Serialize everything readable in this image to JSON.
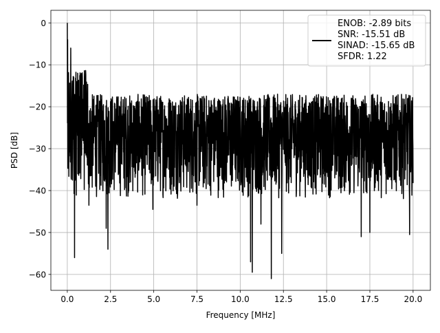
{
  "chart_data": {
    "type": "line",
    "title": "",
    "xlabel": "Frequency [MHz]",
    "ylabel": "PSD [dB]",
    "xlim": [
      -0.95,
      21.0
    ],
    "ylim": [
      -63.8,
      3.0
    ],
    "x_ticks": [
      0.0,
      2.5,
      5.0,
      7.5,
      10.0,
      12.5,
      15.0,
      17.5,
      20.0
    ],
    "x_tick_labels": [
      "0.0",
      "2.5",
      "5.0",
      "7.5",
      "10.0",
      "12.5",
      "15.0",
      "17.5",
      "20.0"
    ],
    "y_ticks": [
      0,
      -10,
      -20,
      -30,
      -40,
      -50,
      -60
    ],
    "y_tick_labels": [
      "0",
      "−10",
      "−20",
      "−30",
      "−40",
      "−50",
      "−60"
    ],
    "grid": true,
    "legend_placement": "top-right",
    "line_color": "#000000",
    "legend": {
      "lines": [
        "ENOB: -2.89 bits",
        "SNR: -15.51 dB",
        "SINAD: -15.65 dB",
        "SFDR: 1.22"
      ]
    },
    "series": [
      {
        "x_range": [
          0.0,
          20.0
        ],
        "noise_floor_db": [
          -42,
          -17
        ],
        "peaks": [
          [
            0.0,
            0.0
          ],
          [
            0.02,
            -4.0
          ],
          [
            0.2,
            -6.0
          ],
          [
            0.6,
            -12.0
          ],
          [
            1.0,
            -13.0
          ]
        ],
        "dips": [
          [
            0.3,
            -37.5
          ],
          [
            0.42,
            -56.0
          ],
          [
            1.25,
            -43.5
          ],
          [
            2.25,
            -49.0
          ],
          [
            2.35,
            -54.0
          ],
          [
            4.95,
            -44.5
          ],
          [
            7.5,
            -43.5
          ],
          [
            10.6,
            -57.0
          ],
          [
            10.7,
            -59.5
          ],
          [
            11.2,
            -48.0
          ],
          [
            11.8,
            -61.0
          ],
          [
            12.4,
            -55.0
          ],
          [
            17.0,
            -51.0
          ],
          [
            17.5,
            -50.0
          ],
          [
            19.8,
            -50.5
          ]
        ]
      }
    ]
  }
}
